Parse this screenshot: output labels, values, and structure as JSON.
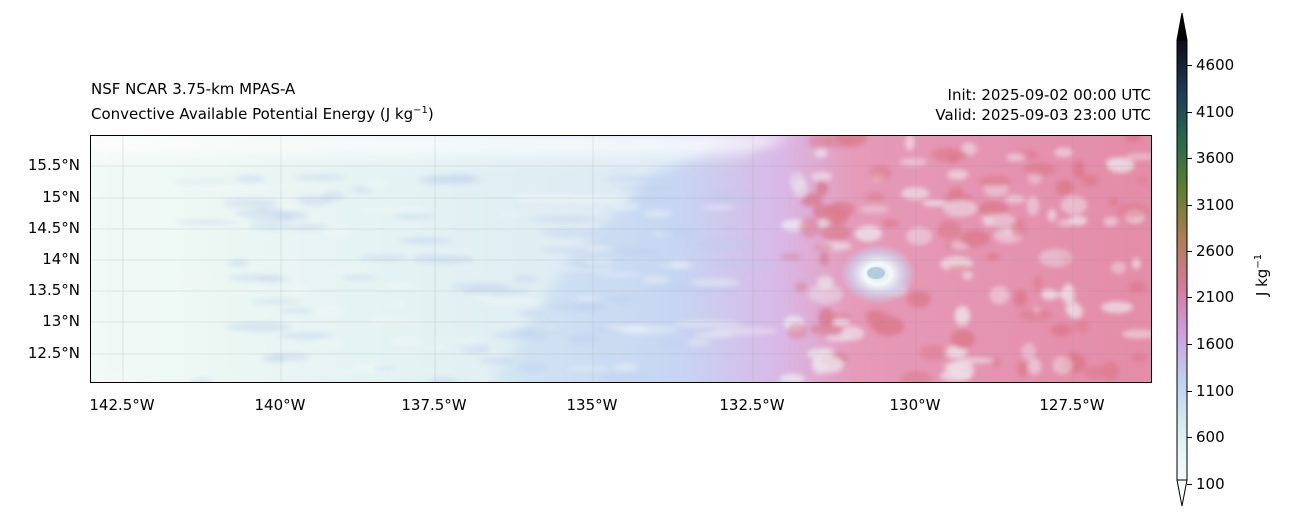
{
  "header": {
    "model": "NSF NCAR 3.75-km MPAS-A",
    "field_title": "Convective Available Potential Energy (J kg",
    "field_units_exp": "−1",
    "field_title_close": ")",
    "init": "Init: 2025-09-02 00:00 UTC",
    "valid": "Valid: 2025-09-03 23:00 UTC"
  },
  "map": {
    "lat_labels": [
      "15.5°N",
      "15°N",
      "14.5°N",
      "14°N",
      "13.5°N",
      "13°N",
      "12.5°N"
    ],
    "lon_labels": [
      "142.5°W",
      "140°W",
      "137.5°W",
      "135°W",
      "132.5°W",
      "130°W",
      "127.5°W"
    ]
  },
  "colorbar": {
    "label": "J kg",
    "label_exp": "−1",
    "ticks": [
      "4600",
      "4100",
      "3600",
      "3100",
      "2600",
      "2100",
      "1600",
      "1100",
      "600",
      "100"
    ],
    "extend": "both"
  }
}
